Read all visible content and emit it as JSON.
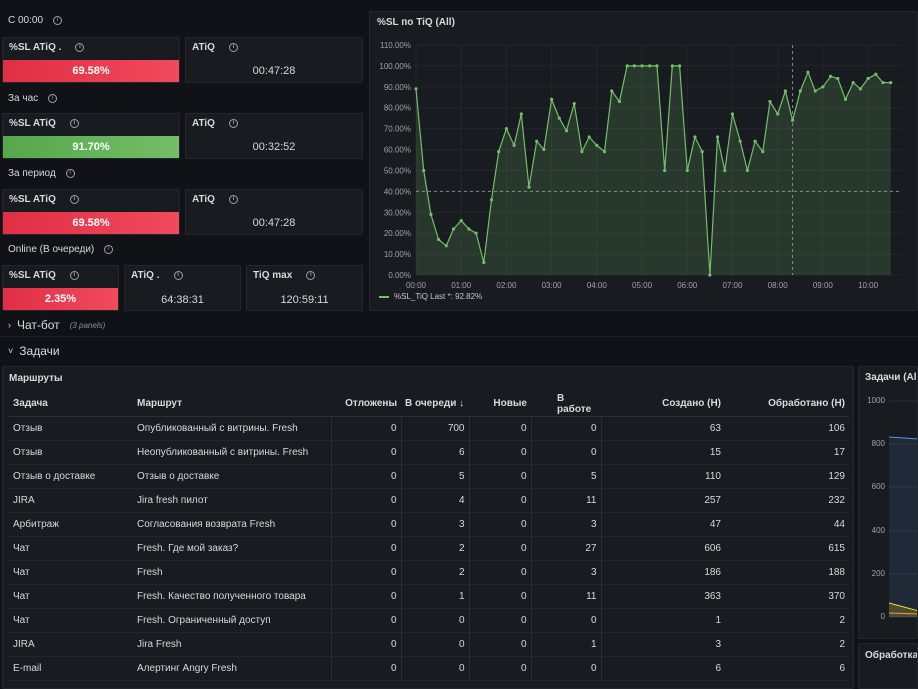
{
  "sections": {
    "since_midnight": "С 00:00",
    "per_hour": "За час",
    "per_period": "За период",
    "online": "Online (В очереди)"
  },
  "stats": {
    "s1_sl_title": "%SL ATiQ .",
    "s1_sl_value": "69.58%",
    "s1_atiq_title": "ATiQ",
    "s1_atiq_value": "00:47:28",
    "s2_sl_title": "%SL ATiQ",
    "s2_sl_value": "91.70%",
    "s2_atiq_title": "ATiQ",
    "s2_atiq_value": "00:32:52",
    "s3_sl_title": "%SL ATiQ",
    "s3_sl_value": "69.58%",
    "s3_atiq_title": "ATiQ",
    "s3_atiq_value": "00:47:28",
    "s4_sl_title": "%SL ATiQ",
    "s4_sl_value": "2.35%",
    "s4_atiq_title": "ATiQ .",
    "s4_atiq_value": "64:38:31",
    "s4_tiq_title": "TiQ max",
    "s4_tiq_value": "120:59:11"
  },
  "colors": {
    "red": "#e02f44",
    "green": "#73bf69",
    "line": "#73bf69"
  },
  "chart_panel": {
    "title": "%SL по TiQ (All)",
    "legend": "%SL_TiQ  Last *: 92.82%"
  },
  "chart_data": {
    "type": "line",
    "title": "%SL по TiQ (All)",
    "x_ticks": [
      "00:00",
      "01:00",
      "02:00",
      "03:00",
      "04:00",
      "05:00",
      "06:00",
      "07:00",
      "08:00",
      "09:00",
      "10:00"
    ],
    "y_ticks": [
      "0.00%",
      "10.00%",
      "20.00%",
      "30.00%",
      "40.00%",
      "50.00%",
      "60.00%",
      "70.00%",
      "80.00%",
      "90.00%",
      "100.00%",
      "110.00%"
    ],
    "ylim": [
      0,
      110
    ],
    "xlim_hours": [
      0,
      10.75
    ],
    "threshold": 40,
    "series": [
      {
        "name": "%SL_TiQ",
        "x": [
          0,
          0.17,
          0.33,
          0.5,
          0.67,
          0.83,
          1,
          1.17,
          1.33,
          1.5,
          1.67,
          1.83,
          2,
          2.17,
          2.33,
          2.5,
          2.67,
          2.83,
          3,
          3.17,
          3.33,
          3.5,
          3.67,
          3.83,
          4,
          4.17,
          4.33,
          4.5,
          4.67,
          4.83,
          5,
          5.17,
          5.33,
          5.5,
          5.67,
          5.83,
          6,
          6.17,
          6.33,
          6.5,
          6.67,
          6.83,
          7,
          7.17,
          7.33,
          7.5,
          7.67,
          7.83,
          8,
          8.17,
          8.33,
          8.5,
          8.67,
          8.83,
          9,
          9.17,
          9.33,
          9.5,
          9.67,
          9.83,
          10,
          10.17,
          10.33,
          10.5
        ],
        "y": [
          89,
          50,
          29,
          17,
          14,
          22,
          26,
          22,
          20,
          6,
          36,
          59,
          70,
          62,
          77,
          42,
          64,
          60,
          84,
          75,
          69,
          82,
          59,
          66,
          62,
          59,
          88,
          83,
          100,
          100,
          100,
          100,
          100,
          50,
          100,
          100,
          50,
          66,
          59,
          0,
          66,
          50,
          77,
          64,
          50,
          64,
          59,
          83,
          77,
          88,
          74,
          88,
          97,
          88,
          90,
          95,
          94,
          84,
          92,
          89,
          94,
          96,
          92,
          92
        ]
      }
    ]
  },
  "chatbot_row": {
    "title": "Чат-бот",
    "meta": "(3 panels)"
  },
  "tasks_row": {
    "title": "Задачи"
  },
  "routes_panel": {
    "title": "Маршруты",
    "columns": [
      "Задача",
      "Маршрут",
      "Отложены",
      "В очереди ↓",
      "Новые",
      "В работе",
      "Создано (Н)",
      "Обработано (Н)"
    ],
    "rows": [
      [
        "Отзыв",
        "Опубликованный с витрины. Fresh",
        "0",
        "700",
        "0",
        "0",
        "63",
        "106"
      ],
      [
        "Отзыв",
        "Неопубликованный с витрины. Fresh",
        "0",
        "6",
        "0",
        "0",
        "15",
        "17"
      ],
      [
        "Отзыв о доставке",
        "Отзыв о доставке",
        "0",
        "5",
        "0",
        "5",
        "110",
        "129"
      ],
      [
        "JIRA",
        "Jira fresh пилот",
        "0",
        "4",
        "0",
        "11",
        "257",
        "232"
      ],
      [
        "Арбитраж",
        "Согласования возврата Fresh",
        "0",
        "3",
        "0",
        "3",
        "47",
        "44"
      ],
      [
        "Чат",
        "Fresh. Где мой заказ?",
        "0",
        "2",
        "0",
        "27",
        "606",
        "615"
      ],
      [
        "Чат",
        "Fresh",
        "0",
        "2",
        "0",
        "3",
        "186",
        "188"
      ],
      [
        "Чат",
        "Fresh. Качество полученного товара",
        "0",
        "1",
        "0",
        "11",
        "363",
        "370"
      ],
      [
        "Чат",
        "Fresh. Ограниченный доступ",
        "0",
        "0",
        "0",
        "0",
        "1",
        "2"
      ],
      [
        "JIRA",
        "Jira Fresh",
        "0",
        "0",
        "0",
        "1",
        "3",
        "2"
      ],
      [
        "E-mail",
        "Алертинг Angry Fresh",
        "0",
        "0",
        "0",
        "0",
        "6",
        "6"
      ]
    ]
  },
  "tasks_panel": {
    "title": "Задачи (All)",
    "y_ticks": [
      "1000",
      "800",
      "600",
      "400",
      "200",
      "0"
    ]
  },
  "processing_panel": {
    "title": "Обработка"
  }
}
